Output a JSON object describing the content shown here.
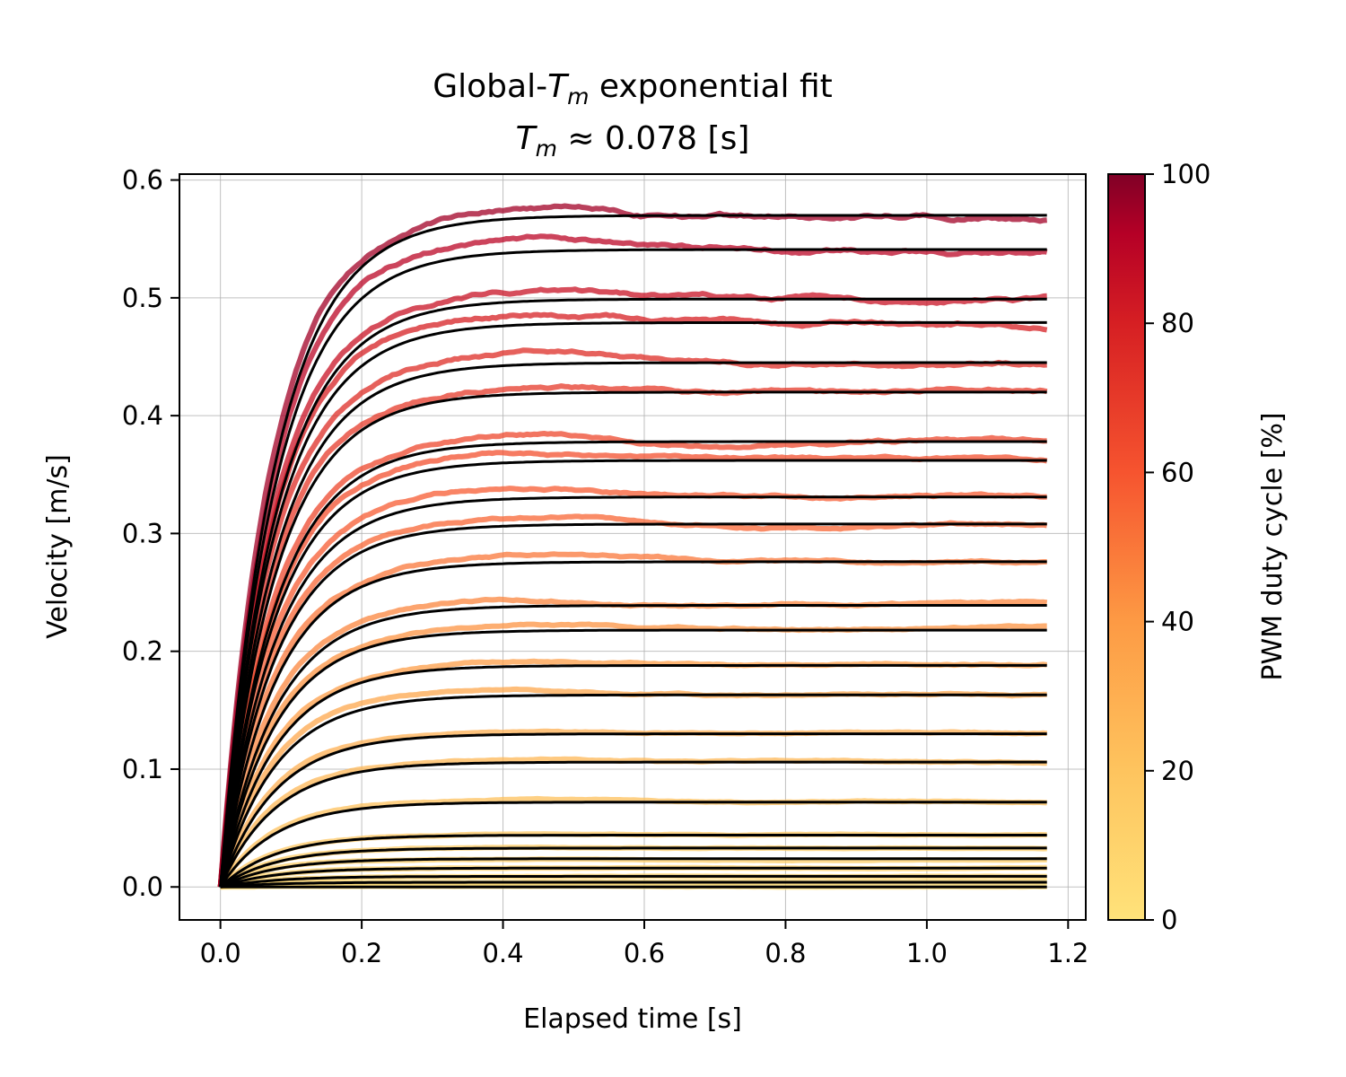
{
  "chart_data": {
    "type": "line",
    "title": "Global-T_m exponential fit",
    "title_parts": {
      "pre": "Global-",
      "sym": "T",
      "sub": "m",
      "post": " exponential fit"
    },
    "subtitle_parts": {
      "sym": "T",
      "sub": "m",
      "post": " ≈ 0.078 [s]"
    },
    "time_constant_s": 0.078,
    "xlabel": "Elapsed time [s]",
    "ylabel": "Velocity [m/s]",
    "xlim": [
      -0.058,
      1.225
    ],
    "ylim": [
      -0.028,
      0.605
    ],
    "xticks": [
      0.0,
      0.2,
      0.4,
      0.6,
      0.8,
      1.0,
      1.2
    ],
    "xtick_labels": [
      "0.0",
      "0.2",
      "0.4",
      "0.6",
      "0.8",
      "1.0",
      "1.2"
    ],
    "yticks": [
      0.0,
      0.1,
      0.2,
      0.3,
      0.4,
      0.5,
      0.6
    ],
    "ytick_labels": [
      "0.0",
      "0.1",
      "0.2",
      "0.3",
      "0.4",
      "0.5",
      "0.6"
    ],
    "grid": true,
    "t_end": 1.17,
    "fit_color": "#000000",
    "series": [
      {
        "pwm": 2,
        "v_fit": 0.0
      },
      {
        "pwm": 5,
        "v_fit": 0.004
      },
      {
        "pwm": 8,
        "v_fit": 0.009
      },
      {
        "pwm": 10,
        "v_fit": 0.016
      },
      {
        "pwm": 13,
        "v_fit": 0.024
      },
      {
        "pwm": 15,
        "v_fit": 0.033
      },
      {
        "pwm": 18,
        "v_fit": 0.044
      },
      {
        "pwm": 22,
        "v_fit": 0.072
      },
      {
        "pwm": 26,
        "v_fit": 0.106
      },
      {
        "pwm": 30,
        "v_fit": 0.13
      },
      {
        "pwm": 34,
        "v_fit": 0.163
      },
      {
        "pwm": 38,
        "v_fit": 0.188
      },
      {
        "pwm": 42,
        "v_fit": 0.218
      },
      {
        "pwm": 46,
        "v_fit": 0.239
      },
      {
        "pwm": 50,
        "v_fit": 0.276
      },
      {
        "pwm": 55,
        "v_fit": 0.308
      },
      {
        "pwm": 58,
        "v_fit": 0.331
      },
      {
        "pwm": 62,
        "v_fit": 0.362
      },
      {
        "pwm": 65,
        "v_fit": 0.378
      },
      {
        "pwm": 70,
        "v_fit": 0.42
      },
      {
        "pwm": 75,
        "v_fit": 0.445
      },
      {
        "pwm": 80,
        "v_fit": 0.479
      },
      {
        "pwm": 85,
        "v_fit": 0.499
      },
      {
        "pwm": 90,
        "v_fit": 0.541
      },
      {
        "pwm": 95,
        "v_fit": 0.57
      }
    ],
    "colorbar": {
      "label": "PWM duty cycle [%]",
      "range": [
        0,
        100
      ],
      "ticks": [
        0,
        20,
        40,
        60,
        80,
        100
      ],
      "tick_labels": [
        "0",
        "20",
        "40",
        "60",
        "80",
        "100"
      ],
      "colormap": "YlOrRd",
      "stops": [
        {
          "pos": 0.0,
          "color": "#ffe27a"
        },
        {
          "pos": 0.2,
          "color": "#fec45e"
        },
        {
          "pos": 0.4,
          "color": "#fd9a44"
        },
        {
          "pos": 0.6,
          "color": "#f6542f"
        },
        {
          "pos": 0.8,
          "color": "#d61f23"
        },
        {
          "pos": 0.92,
          "color": "#b50026"
        },
        {
          "pos": 1.0,
          "color": "#800026"
        }
      ]
    }
  }
}
